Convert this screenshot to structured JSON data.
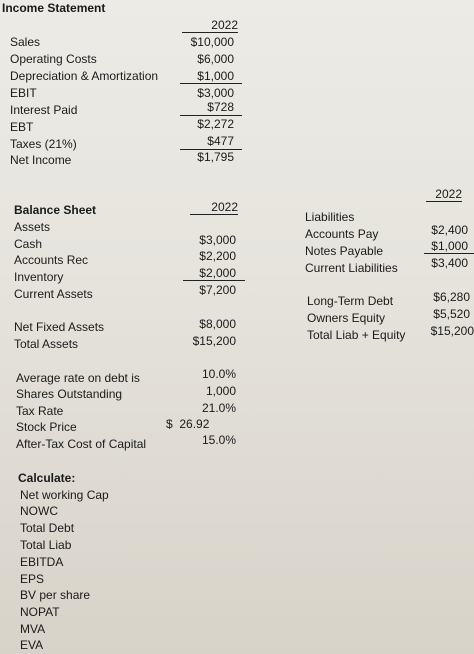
{
  "income_statement": {
    "title": "Income Statement",
    "year": "2022",
    "rows": [
      {
        "label": "Sales",
        "value": "$10,000"
      },
      {
        "label": "Operating Costs",
        "value": "$6,000"
      },
      {
        "label": "Depreciation & Amortization",
        "value": "$1,000"
      },
      {
        "label": "EBIT",
        "value": "$3,000"
      },
      {
        "label": "Interest Paid",
        "value": "$728"
      },
      {
        "label": "EBT",
        "value": "$2,272"
      },
      {
        "label": "Taxes (21%)",
        "value": "$477"
      },
      {
        "label": "Net Income",
        "value": "$1,795"
      }
    ]
  },
  "balance_sheet": {
    "title": "Balance Sheet",
    "year": "2022",
    "assets_label": "Assets",
    "assets": [
      {
        "label": "Cash",
        "value": "$3,000"
      },
      {
        "label": "Accounts Rec",
        "value": "$2,200"
      },
      {
        "label": "Inventory",
        "value": "$2,000"
      },
      {
        "label": "Current Assets",
        "value": "$7,200"
      }
    ],
    "net_fixed_assets": {
      "label": "Net Fixed Assets",
      "value": "$8,000"
    },
    "total_assets": {
      "label": "Total Assets",
      "value": "$15,200"
    },
    "liabilities_year": "2022",
    "liabilities_label": "Liabilities",
    "liabilities": [
      {
        "label": "Accounts Pay",
        "value": "$2,400"
      },
      {
        "label": "Notes Payable",
        "value": "$1,000"
      },
      {
        "label": "Current Liabilities",
        "value": "$3,400"
      }
    ],
    "long_term_debt": {
      "label": "Long-Term Debt",
      "value": "$6,280"
    },
    "owners_equity": {
      "label": "Owners Equity",
      "value": "$5,520"
    },
    "total_liab_equity": {
      "label": "Total Liab + Equity",
      "value": "$15,200"
    }
  },
  "other": [
    {
      "label": "Average rate on debt is",
      "value": "10.0%"
    },
    {
      "label": "Shares Outstanding",
      "value": "1,000"
    },
    {
      "label": "Tax Rate",
      "value": "21.0%"
    },
    {
      "label": "Stock Price",
      "value": "$  26.92"
    },
    {
      "label": "After-Tax Cost of Capital",
      "value": "15.0%"
    }
  ],
  "calculate": {
    "title": "Calculate:",
    "items": [
      "Net working Cap",
      "NOWC",
      "Total Debt",
      "Total Liab",
      "EBITDA",
      "EPS",
      "BV per share",
      "NOPAT",
      "MVA",
      "EVA"
    ]
  }
}
